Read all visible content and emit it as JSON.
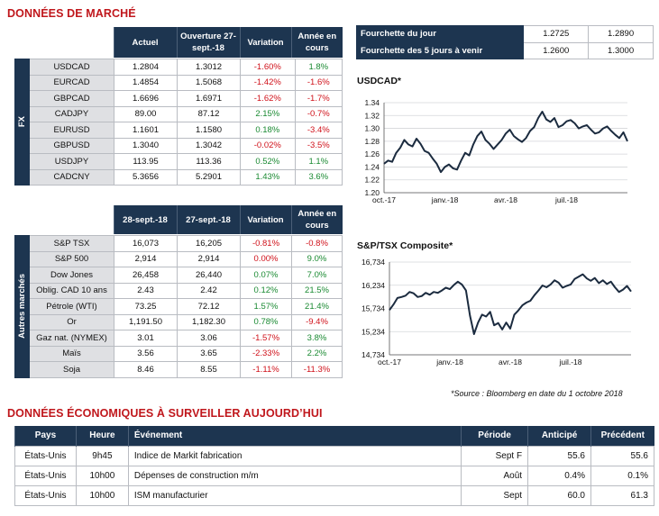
{
  "market": {
    "title": "DONNÉES DE MARCHÉ",
    "fx_headers": [
      "Actuel",
      "Ouverture 27-sept.-18",
      "Variation",
      "Année en cours"
    ],
    "fx_side_label": "FX",
    "fx_rows": [
      {
        "name": "USDCAD",
        "actuel": "1.2804",
        "ouverture": "1.3012",
        "variation": "-1.60%",
        "annee": "1.8%",
        "var_dir": "neg",
        "annee_dir": "pos"
      },
      {
        "name": "EURCAD",
        "actuel": "1.4854",
        "ouverture": "1.5068",
        "variation": "-1.42%",
        "annee": "-1.6%",
        "var_dir": "neg",
        "annee_dir": "neg"
      },
      {
        "name": "GBPCAD",
        "actuel": "1.6696",
        "ouverture": "1.6971",
        "variation": "-1.62%",
        "annee": "-1.7%",
        "var_dir": "neg",
        "annee_dir": "neg"
      },
      {
        "name": "CADJPY",
        "actuel": "89.00",
        "ouverture": "87.12",
        "variation": "2.15%",
        "annee": "-0.7%",
        "var_dir": "pos",
        "annee_dir": "neg"
      },
      {
        "name": "EURUSD",
        "actuel": "1.1601",
        "ouverture": "1.1580",
        "variation": "0.18%",
        "annee": "-3.4%",
        "var_dir": "pos",
        "annee_dir": "neg"
      },
      {
        "name": "GBPUSD",
        "actuel": "1.3040",
        "ouverture": "1.3042",
        "variation": "-0.02%",
        "annee": "-3.5%",
        "var_dir": "neg",
        "annee_dir": "neg"
      },
      {
        "name": "USDJPY",
        "actuel": "113.95",
        "ouverture": "113.36",
        "variation": "0.52%",
        "annee": "1.1%",
        "var_dir": "pos",
        "annee_dir": "pos"
      },
      {
        "name": "CADCNY",
        "actuel": "5.3656",
        "ouverture": "5.2901",
        "variation": "1.43%",
        "annee": "3.6%",
        "var_dir": "pos",
        "annee_dir": "pos"
      }
    ],
    "other_headers": [
      "28-sept.-18",
      "27-sept.-18",
      "Variation",
      "Année en cours"
    ],
    "other_side_label": "Autres marchés",
    "other_rows": [
      {
        "name": "S&P TSX",
        "actuel": "16,073",
        "ouverture": "16,205",
        "variation": "-0.81%",
        "annee": "-0.8%",
        "var_dir": "neg",
        "annee_dir": "neg"
      },
      {
        "name": "S&P 500",
        "actuel": "2,914",
        "ouverture": "2,914",
        "variation": "0.00%",
        "annee": "9.0%",
        "var_dir": "neg",
        "annee_dir": "pos"
      },
      {
        "name": "Dow Jones",
        "actuel": "26,458",
        "ouverture": "26,440",
        "variation": "0.07%",
        "annee": "7.0%",
        "var_dir": "pos",
        "annee_dir": "pos"
      },
      {
        "name": "Oblig. CAD 10 ans",
        "actuel": "2.43",
        "ouverture": "2.42",
        "variation": "0.12%",
        "annee": "21.5%",
        "var_dir": "pos",
        "annee_dir": "pos"
      },
      {
        "name": "Pétrole (WTI)",
        "actuel": "73.25",
        "ouverture": "72.12",
        "variation": "1.57%",
        "annee": "21.4%",
        "var_dir": "pos",
        "annee_dir": "pos"
      },
      {
        "name": "Or",
        "actuel": "1,191.50",
        "ouverture": "1,182.30",
        "variation": "0.78%",
        "annee": "-9.4%",
        "var_dir": "pos",
        "annee_dir": "neg"
      },
      {
        "name": "Gaz nat. (NYMEX)",
        "actuel": "3.01",
        "ouverture": "3.06",
        "variation": "-1.57%",
        "annee": "3.8%",
        "var_dir": "neg",
        "annee_dir": "pos"
      },
      {
        "name": "Maïs",
        "actuel": "3.56",
        "ouverture": "3.65",
        "variation": "-2.33%",
        "annee": "2.2%",
        "var_dir": "neg",
        "annee_dir": "pos"
      },
      {
        "name": "Soja",
        "actuel": "8.46",
        "ouverture": "8.55",
        "variation": "-1.11%",
        "annee": "-11.3%",
        "var_dir": "neg",
        "annee_dir": "neg"
      }
    ]
  },
  "ranges": [
    {
      "label": "Fourchette du jour",
      "low": "1.2725",
      "high": "1.2890"
    },
    {
      "label": "Fourchette des 5 jours à venir",
      "low": "1.2600",
      "high": "1.3000"
    }
  ],
  "chart_data": [
    {
      "type": "line",
      "title": "USDCAD*",
      "yticks": [
        "1.34",
        "1.32",
        "1.30",
        "1.28",
        "1.26",
        "1.24",
        "1.22",
        "1.20"
      ],
      "ylim": [
        1.2,
        1.34
      ],
      "xticks": [
        "oct.-17",
        "janv.-18",
        "avr.-18",
        "juil.-18"
      ],
      "xlim": [
        0,
        12
      ],
      "xtick_pos": [
        0,
        3,
        6,
        9
      ],
      "series": [
        {
          "x": [
            0,
            0.2,
            0.4,
            0.6,
            0.8,
            1.0,
            1.2,
            1.4,
            1.6,
            1.8,
            2.0,
            2.2,
            2.4,
            2.6,
            2.8,
            3.0,
            3.2,
            3.4,
            3.6,
            3.8,
            4.0,
            4.2,
            4.4,
            4.6,
            4.8,
            5.0,
            5.2,
            5.4,
            5.6,
            5.8,
            6.0,
            6.2,
            6.4,
            6.6,
            6.8,
            7.0,
            7.2,
            7.4,
            7.6,
            7.8,
            8.0,
            8.2,
            8.4,
            8.6,
            8.8,
            9.0,
            9.2,
            9.4,
            9.6,
            9.8,
            10.0,
            10.2,
            10.4,
            10.6,
            10.8,
            11.0,
            11.2,
            11.4,
            11.6,
            11.8,
            12.0
          ],
          "y": [
            1.245,
            1.25,
            1.248,
            1.262,
            1.27,
            1.282,
            1.275,
            1.272,
            1.284,
            1.276,
            1.265,
            1.262,
            1.253,
            1.245,
            1.232,
            1.24,
            1.244,
            1.238,
            1.236,
            1.25,
            1.262,
            1.258,
            1.275,
            1.288,
            1.295,
            1.282,
            1.276,
            1.268,
            1.275,
            1.282,
            1.292,
            1.298,
            1.288,
            1.283,
            1.279,
            1.285,
            1.296,
            1.302,
            1.316,
            1.326,
            1.314,
            1.31,
            1.316,
            1.302,
            1.305,
            1.311,
            1.313,
            1.308,
            1.3,
            1.303,
            1.305,
            1.298,
            1.292,
            1.294,
            1.3,
            1.303,
            1.296,
            1.29,
            1.285,
            1.294,
            1.28
          ]
        }
      ]
    },
    {
      "type": "line",
      "title": "S&P/TSX Composite*",
      "yticks": [
        "16,734",
        "16,234",
        "15,734",
        "15,234",
        "14,734"
      ],
      "ylim": [
        14734,
        16734
      ],
      "xticks": [
        "oct.-17",
        "janv.-18",
        "avr.-18",
        "juil.-18"
      ],
      "xlim": [
        0,
        12
      ],
      "xtick_pos": [
        0,
        3,
        6,
        9
      ],
      "series": [
        {
          "x": [
            0,
            0.2,
            0.4,
            0.6,
            0.8,
            1.0,
            1.2,
            1.4,
            1.6,
            1.8,
            2.0,
            2.2,
            2.4,
            2.6,
            2.8,
            3.0,
            3.2,
            3.4,
            3.6,
            3.8,
            4.0,
            4.2,
            4.4,
            4.6,
            4.8,
            5.0,
            5.2,
            5.4,
            5.6,
            5.8,
            6.0,
            6.2,
            6.4,
            6.6,
            6.8,
            7.0,
            7.2,
            7.4,
            7.6,
            7.8,
            8.0,
            8.2,
            8.4,
            8.6,
            8.8,
            9.0,
            9.2,
            9.4,
            9.6,
            9.8,
            10.0,
            10.2,
            10.4,
            10.6,
            10.8,
            11.0,
            11.2,
            11.4,
            11.6,
            11.8,
            12.0
          ],
          "y": [
            15700,
            15820,
            15960,
            15980,
            16010,
            16090,
            16060,
            15980,
            16000,
            16070,
            16030,
            16090,
            16070,
            16120,
            16180,
            16150,
            16240,
            16310,
            16250,
            16120,
            15580,
            15180,
            15430,
            15600,
            15560,
            15660,
            15370,
            15420,
            15280,
            15430,
            15300,
            15600,
            15690,
            15800,
            15860,
            15900,
            16020,
            16120,
            16230,
            16190,
            16250,
            16340,
            16290,
            16180,
            16220,
            16250,
            16370,
            16420,
            16470,
            16380,
            16330,
            16390,
            16280,
            16340,
            16260,
            16310,
            16190,
            16090,
            16140,
            16220,
            16100
          ]
        }
      ]
    }
  ],
  "source_note": "*Source : Bloomberg en date du  1 octobre 2018",
  "economic": {
    "title": "DONNÉES ÉCONOMIQUES À SURVEILLER AUJOURD’HUI",
    "headers": [
      "Pays",
      "Heure",
      "Événement",
      "Période",
      "Anticipé",
      "Précédent"
    ],
    "rows": [
      {
        "pays": "États-Unis",
        "heure": "9h45",
        "evenement": "Indice de Markit fabrication",
        "periode": "Sept F",
        "anticipe": "55.6",
        "precedent": "55.6"
      },
      {
        "pays": "États-Unis",
        "heure": "10h00",
        "evenement": "Dépenses de construction m/m",
        "periode": "Août",
        "anticipe": "0.4%",
        "precedent": "0.1%"
      },
      {
        "pays": "États-Unis",
        "heure": "10h00",
        "evenement": "ISM manufacturier",
        "periode": "Sept",
        "anticipe": "60.0",
        "precedent": "61.3"
      }
    ]
  },
  "colors": {
    "navy": "#1d3550",
    "red": "#c0171c",
    "positive": "#1a8a32",
    "negative": "#d0111a",
    "line": "#1b2b3f"
  }
}
